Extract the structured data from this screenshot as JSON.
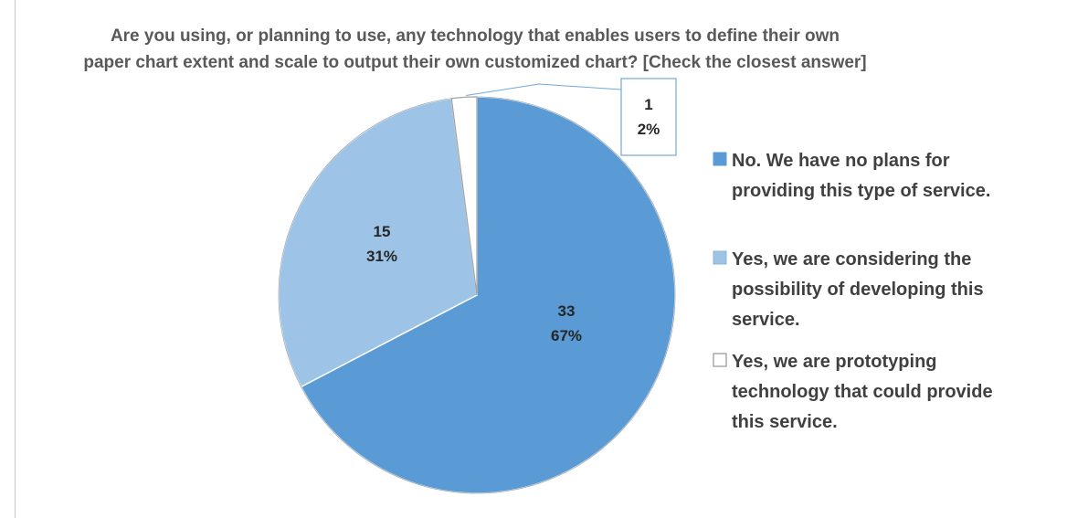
{
  "chart_data": {
    "type": "pie",
    "title": "Are you using, or planning to use, any technology that enables users to define their own paper chart extent and scale to output their own customized chart? [Check the closest answer]",
    "title_lines": [
      "Are you using, or planning to use, any technology that enables users to define their own",
      "paper chart extent and scale to output their own customized chart? [Check the closest answer]"
    ],
    "legend_position": "right",
    "slices": [
      {
        "label": "No. We have no plans for providing this type of service.",
        "legend_lines": [
          "No. We have no plans for",
          "providing this type of service."
        ],
        "value": 33,
        "percent": "67%",
        "color": "#5b9bd5"
      },
      {
        "label": "Yes, we are considering the possibility of developing this service.",
        "legend_lines": [
          "Yes, we are considering the",
          "possibility of developing this",
          "service."
        ],
        "value": 15,
        "percent": "31%",
        "color": "#9dc3e6"
      },
      {
        "label": "Yes, we are prototyping technology that could provide this service.",
        "legend_lines": [
          "Yes, we are prototyping",
          "technology that could provide",
          "this service."
        ],
        "value": 1,
        "percent": "2%",
        "color": "#ffffff"
      }
    ]
  }
}
